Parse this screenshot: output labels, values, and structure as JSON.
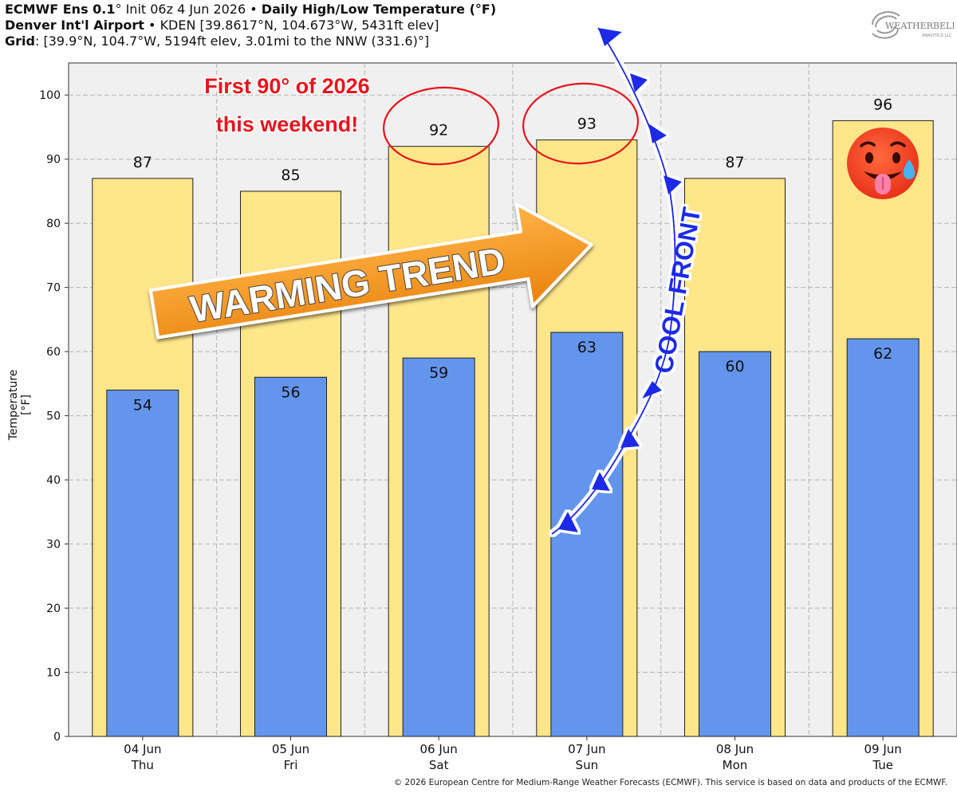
{
  "header": {
    "line1_bold": "ECMWF Ens 0.1",
    "line1_deg": "°",
    "line1_rest": "  Init 06z 4 Jun 2026",
    "line1_sep": " • ",
    "line1_title": "Daily High/Low Temperature (°F)",
    "line2_bold": "Denver Int'l Airport",
    "line2_rest": " • KDEN [39.8617°N, 104.673°W, 5431ft elev]",
    "line3_bold": "Grid",
    "line3_rest": ": [39.9°N, 104.7°W, 5194ft elev, 3.01mi to the NNW (331.6)°]"
  },
  "logo": {
    "brand": "WEATHERBELL",
    "sub": "ANALYTICS LLC"
  },
  "annotations": {
    "first90_line1": "First 90° of 2026",
    "first90_line2": "this weekend!",
    "warming": "WARMING TREND",
    "coolfront": "COOL FRONT"
  },
  "footer": "© 2026 European Centre for Medium-Range Weather Forecasts (ECMWF). This service is based on data and products of the ECMWF.",
  "chart_data": {
    "type": "bar",
    "categories": [
      "04 Jun",
      "05 Jun",
      "06 Jun",
      "07 Jun",
      "08 Jun",
      "09 Jun"
    ],
    "days": [
      "Thu",
      "Fri",
      "Sat",
      "Sun",
      "Mon",
      "Tue"
    ],
    "series": [
      {
        "values": [
          87,
          85,
          92,
          93,
          87,
          96
        ],
        "color": "#ffe68a"
      },
      {
        "values": [
          54,
          56,
          59,
          63,
          60,
          62
        ],
        "color": "#6495ed"
      }
    ],
    "ylabel": "Temperature [°F]",
    "ylim": [
      0,
      105
    ],
    "yticks": [
      0,
      10,
      20,
      30,
      40,
      50,
      60,
      70,
      80,
      90,
      100
    ],
    "grid": true,
    "colors": {
      "annotation_red": "#e8141c",
      "arrow_orange": "#f7941d",
      "front_blue": "#1a2be8",
      "plot_bg": "#f0f0f0"
    }
  }
}
